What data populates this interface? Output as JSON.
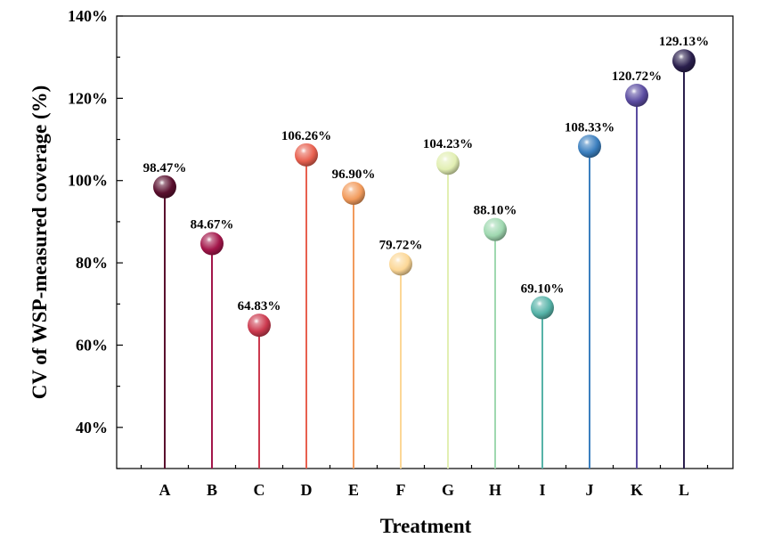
{
  "chart_data": {
    "type": "lollipop",
    "title": "",
    "xlabel": "Treatment",
    "ylabel": "CV of WSP-measured coverage (%)",
    "ylim": [
      30,
      140
    ],
    "yticks": [
      40,
      60,
      80,
      100,
      120,
      140
    ],
    "ytick_labels": [
      "40%",
      "60%",
      "80%",
      "100%",
      "120%",
      "140%"
    ],
    "grid": false,
    "categories": [
      "A",
      "B",
      "C",
      "D",
      "E",
      "F",
      "G",
      "H",
      "I",
      "J",
      "K",
      "L"
    ],
    "values": [
      98.47,
      84.67,
      64.83,
      106.26,
      96.9,
      79.72,
      104.23,
      88.1,
      69.1,
      108.33,
      120.72,
      129.13
    ],
    "value_labels": [
      "98.47%",
      "84.67%",
      "64.83%",
      "106.26%",
      "96.90%",
      "79.72%",
      "104.23%",
      "88.10%",
      "69.10%",
      "108.33%",
      "120.72%",
      "129.13%"
    ],
    "colors": [
      "#5a0f2e",
      "#a3164a",
      "#cc3a4f",
      "#e8604f",
      "#f29b5c",
      "#fcd796",
      "#e2efb3",
      "#9fd8b0",
      "#56b3a8",
      "#3b7fbf",
      "#5a4ba0",
      "#2a1f4d"
    ]
  }
}
